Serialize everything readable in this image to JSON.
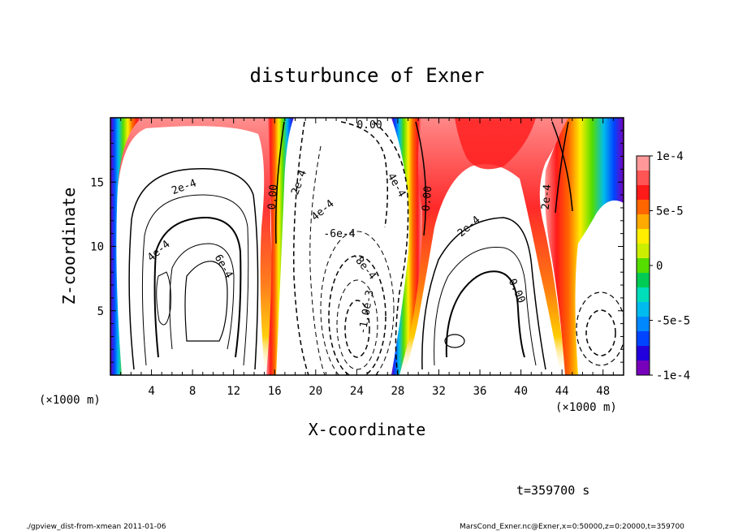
{
  "chart_data": {
    "type": "heatmap",
    "title": "disturbunce of Exner",
    "xlabel": "X-coordinate",
    "ylabel": "Z-coordinate",
    "x_unit": "(×1000 m)",
    "y_unit": "(×1000 m)",
    "xlim": [
      0,
      50
    ],
    "ylim": [
      0,
      20
    ],
    "x_ticks": [
      4,
      8,
      12,
      16,
      20,
      24,
      28,
      32,
      36,
      40,
      44,
      48
    ],
    "y_ticks": [
      5,
      10,
      15
    ],
    "colorbar": {
      "range": [
        -0.0001,
        0.0001
      ],
      "tick_labels": [
        "1e-4",
        "5e-5",
        "0",
        "-5e-5",
        "-1e-4"
      ],
      "colors": [
        "#ff9999",
        "#ff5555",
        "#ff1a1a",
        "#ff6600",
        "#ffaa00",
        "#ffee00",
        "#ccee00",
        "#55dd00",
        "#00cc55",
        "#00ddbb",
        "#00bbee",
        "#0088ff",
        "#0044ff",
        "#2200dd",
        "#7700bb"
      ]
    },
    "contour_labels": [
      "2e-4",
      "4e-4",
      "6e-4",
      "0.00",
      "2e-4",
      "4e-4",
      "-6e-4",
      "-8e-4",
      "-1.0e-3",
      "0.00",
      "2e-4",
      "0.00",
      "2e-4",
      "4e-4",
      "0.00"
    ],
    "annotation": "t=359700 s"
  },
  "footer": {
    "left": "./gpview_dist-from-xmean   2011-01-06",
    "right": "MarsCond_Exner.nc@Exner,x=0:50000,z=0:20000,t=359700"
  }
}
